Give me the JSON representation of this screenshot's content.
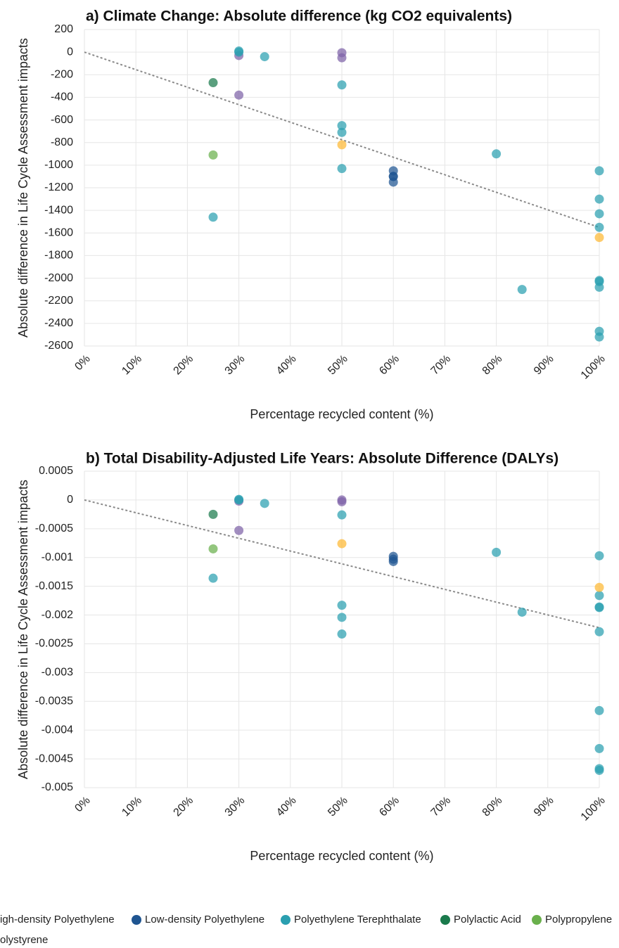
{
  "chart_data": [
    {
      "type": "scatter",
      "title": "a) Climate Change: Absolute difference (kg CO2 equivalents)",
      "x_label": "Percentage recycled content (%)",
      "y_label": "Absolute difference in Life Cycle Assessment impacts",
      "xlim": [
        0,
        100
      ],
      "xticks": [
        {
          "value": 0,
          "label": "0%"
        },
        {
          "value": 10,
          "label": "10%"
        },
        {
          "value": 20,
          "label": "20%"
        },
        {
          "value": 30,
          "label": "30%"
        },
        {
          "value": 40,
          "label": "40%"
        },
        {
          "value": 50,
          "label": "50%"
        },
        {
          "value": 60,
          "label": "60%"
        },
        {
          "value": 70,
          "label": "70%"
        },
        {
          "value": 80,
          "label": "80%"
        },
        {
          "value": 90,
          "label": "90%"
        },
        {
          "value": 100,
          "label": "100%"
        }
      ],
      "ylim": [
        -2600,
        200
      ],
      "yticks": [
        200,
        0,
        -200,
        -400,
        -600,
        -800,
        -1000,
        -1200,
        -1400,
        -1600,
        -1800,
        -2000,
        -2200,
        -2400,
        -2600
      ],
      "grid": true,
      "trendline": {
        "x": [
          0,
          100
        ],
        "y": [
          0,
          -1550
        ]
      },
      "series": [
        {
          "name": "igh-density Polyethylene",
          "color": "#7e63a8",
          "x": [
            30,
            30,
            50,
            50
          ],
          "values": [
            -30,
            -380,
            -5,
            -50
          ]
        },
        {
          "name": "Low-density Polyethylene",
          "color": "#1f5591",
          "x": [
            60,
            60,
            60,
            60
          ],
          "values": [
            -1050,
            -1100,
            -1150,
            -1100
          ]
        },
        {
          "name": "Polyethylene Terephthalate",
          "color": "#2a9fb0",
          "x": [
            30,
            30,
            35,
            50,
            50,
            50,
            50,
            25,
            80,
            85,
            100,
            100,
            100,
            100,
            100,
            100,
            100,
            100,
            100
          ],
          "values": [
            0,
            10,
            -40,
            -290,
            -650,
            -710,
            -1030,
            -1460,
            -900,
            -2100,
            -1050,
            -1300,
            -1430,
            -1550,
            -2030,
            -2080,
            -2020,
            -2470,
            -2520
          ]
        },
        {
          "name": "Polylactic Acid",
          "color": "#1a7a4c",
          "x": [
            25
          ],
          "values": [
            -270
          ]
        },
        {
          "name": "Polypropylene",
          "color": "#6ab04c",
          "x": [
            25
          ],
          "values": [
            -910
          ]
        },
        {
          "name": "olystyrene",
          "color": "#fdb833",
          "x": [
            50,
            100
          ],
          "values": [
            -820,
            -1640
          ]
        }
      ]
    },
    {
      "type": "scatter",
      "title": "b) Total Disability-Adjusted Life Years: Absolute Difference (DALYs)",
      "x_label": "Percentage recycled content (%)",
      "y_label": "Absolute difference in Life Cycle Assessment impacts",
      "xlim": [
        0,
        100
      ],
      "xticks": [
        {
          "value": 0,
          "label": "0%"
        },
        {
          "value": 10,
          "label": "10%"
        },
        {
          "value": 20,
          "label": "20%"
        },
        {
          "value": 30,
          "label": "30%"
        },
        {
          "value": 40,
          "label": "40%"
        },
        {
          "value": 50,
          "label": "50%"
        },
        {
          "value": 60,
          "label": "60%"
        },
        {
          "value": 70,
          "label": "70%"
        },
        {
          "value": 80,
          "label": "80%"
        },
        {
          "value": 90,
          "label": "90%"
        },
        {
          "value": 100,
          "label": "100%"
        }
      ],
      "ylim": [
        -0.005,
        0.0005
      ],
      "yticks": [
        0.0005,
        0,
        -0.0005,
        -0.001,
        -0.0015,
        -0.002,
        -0.0025,
        -0.003,
        -0.0035,
        -0.004,
        -0.0045,
        -0.005
      ],
      "grid": true,
      "trendline": {
        "x": [
          0,
          100
        ],
        "y": [
          0,
          -0.00222
        ]
      },
      "series": [
        {
          "x": [
            30,
            30,
            50,
            50
          ],
          "values": [
            -2e-05,
            -0.00053,
            0,
            -3e-05
          ]
        },
        {
          "x": [
            60,
            60,
            60
          ],
          "values": [
            -0.00098,
            -0.00103,
            -0.00107
          ]
        },
        {
          "x": [
            30,
            30,
            35,
            50,
            50,
            50,
            50,
            25,
            80,
            85,
            100,
            100,
            100,
            100,
            100,
            100,
            100,
            100,
            100
          ],
          "values": [
            0,
            1e-05,
            -6e-05,
            -0.00026,
            -0.00183,
            -0.00204,
            -0.00233,
            -0.00136,
            -0.00091,
            -0.00195,
            -0.00097,
            -0.00166,
            -0.00186,
            -0.00187,
            -0.00229,
            -0.00366,
            -0.00432,
            -0.00467,
            -0.0047
          ]
        },
        {
          "x": [
            25
          ],
          "values": [
            -0.00025
          ]
        },
        {
          "x": [
            25
          ],
          "values": [
            -0.00085
          ]
        },
        {
          "x": [
            50,
            100
          ],
          "values": [
            -0.00076,
            -0.00152
          ]
        }
      ]
    }
  ]
}
